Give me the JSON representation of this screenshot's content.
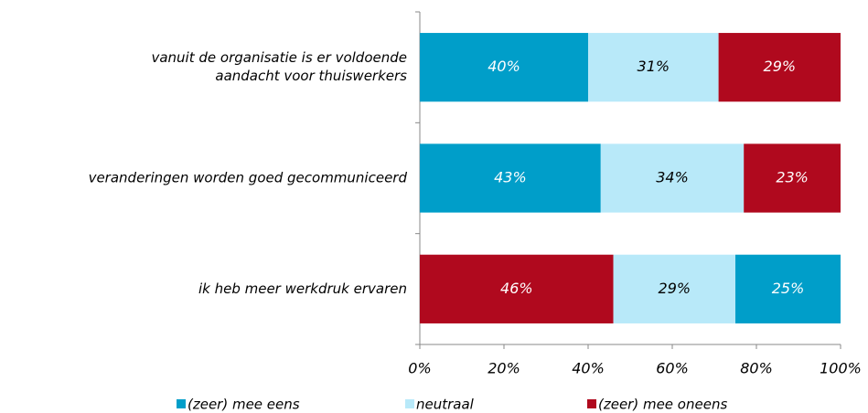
{
  "chart_data": {
    "type": "stacked_bar_horizontal",
    "categories": [
      [
        "vanuit de organisatie is er voldoende",
        "aandacht voor thuiswerkers"
      ],
      "veranderingen worden goed gecommuniceerd",
      "ik heb meer werkdruk ervaren"
    ],
    "series": [
      {
        "name": "(zeer) mee eens",
        "color": "#009ec9",
        "label_color": "#ffffff",
        "values": [
          40,
          43,
          25
        ],
        "value_labels": [
          "40%",
          "43%",
          "25%"
        ]
      },
      {
        "name": "neutraal",
        "color": "#b8e9f9",
        "label_color": "#000000",
        "values": [
          31,
          34,
          29
        ],
        "value_labels": [
          "31%",
          "34%",
          "29%"
        ]
      },
      {
        "name": "(zeer) mee oneens",
        "color": "#b0091e",
        "label_color": "#ffffff",
        "values": [
          29,
          23,
          46
        ],
        "value_labels": [
          "29%",
          "23%",
          "46%"
        ]
      }
    ],
    "stack_order": [
      [
        0,
        1,
        2
      ],
      [
        0,
        1,
        2
      ],
      [
        2,
        1,
        0
      ]
    ],
    "xlim": [
      0,
      100
    ],
    "xticks": [
      {
        "value": 0,
        "label": "0%"
      },
      {
        "value": 20,
        "label": "20%"
      },
      {
        "value": 40,
        "label": "40%"
      },
      {
        "value": 60,
        "label": "60%"
      },
      {
        "value": 80,
        "label": "80%"
      },
      {
        "value": 100,
        "label": "100%"
      }
    ],
    "legend": "bottom"
  }
}
